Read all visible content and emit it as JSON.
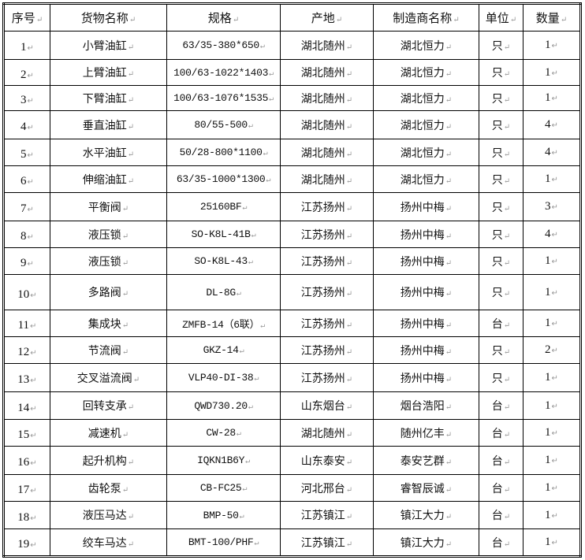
{
  "headers": [
    "序号",
    "货物名称",
    "规格",
    "产地",
    "制造商名称",
    "单位",
    "数量"
  ],
  "rows": [
    [
      "1",
      "小臂油缸",
      "63/35-380*650",
      "湖北随州",
      "湖北恒力",
      "只",
      "1"
    ],
    [
      "2",
      "上臂油缸",
      "100/63-1022*1403",
      "湖北随州",
      "湖北恒力",
      "只",
      "1"
    ],
    [
      "3",
      "下臂油缸",
      "100/63-1076*1535",
      "湖北随州",
      "湖北恒力",
      "只",
      "1"
    ],
    [
      "4",
      "垂直油缸",
      "80/55-500",
      "湖北随州",
      "湖北恒力",
      "只",
      "4"
    ],
    [
      "5",
      "水平油缸",
      "50/28-800*1100",
      "湖北随州",
      "湖北恒力",
      "只",
      "4"
    ],
    [
      "6",
      "伸缩油缸",
      "63/35-1000*1300",
      "湖北随州",
      "湖北恒力",
      "只",
      "1"
    ],
    [
      "7",
      "平衡阀",
      "25160BF",
      "江苏扬州",
      "扬州中梅",
      "只",
      "3"
    ],
    [
      "8",
      "液压锁",
      "SO-K8L-41B",
      "江苏扬州",
      "扬州中梅",
      "只",
      "4"
    ],
    [
      "9",
      "液压锁",
      "SO-K8L-43",
      "江苏扬州",
      "扬州中梅",
      "只",
      "1"
    ],
    [
      "10",
      "多路阀",
      "DL-8G",
      "江苏扬州",
      "扬州中梅",
      "只",
      "1"
    ],
    [
      "11",
      "集成块",
      "ZMFB-14（6联）",
      "江苏扬州",
      "扬州中梅",
      "台",
      "1"
    ],
    [
      "12",
      "节流阀",
      "GKZ-14",
      "江苏扬州",
      "扬州中梅",
      "只",
      "2"
    ],
    [
      "13",
      "交叉溢流阀",
      "VLP40-DI-38",
      "江苏扬州",
      "扬州中梅",
      "只",
      "1"
    ],
    [
      "14",
      "回转支承",
      "QWD730.20",
      "山东烟台",
      "烟台浩阳",
      "台",
      "1"
    ],
    [
      "15",
      "减速机",
      "CW-28",
      "湖北随州",
      "随州亿丰",
      "台",
      "1"
    ],
    [
      "16",
      "起升机构",
      "IQKN1B6Y",
      "山东泰安",
      "泰安艺群",
      "台",
      "1"
    ],
    [
      "17",
      "齿轮泵",
      "CB-FC25",
      "河北邢台",
      "睿智辰诚",
      "台",
      "1"
    ],
    [
      "18",
      "液压马达",
      "BMP-50",
      "江苏镇江",
      "镇江大力",
      "台",
      "1"
    ],
    [
      "19",
      "绞车马达",
      "BMT-100/PHF",
      "江苏镇江",
      "镇江大力",
      "台",
      "1"
    ]
  ]
}
